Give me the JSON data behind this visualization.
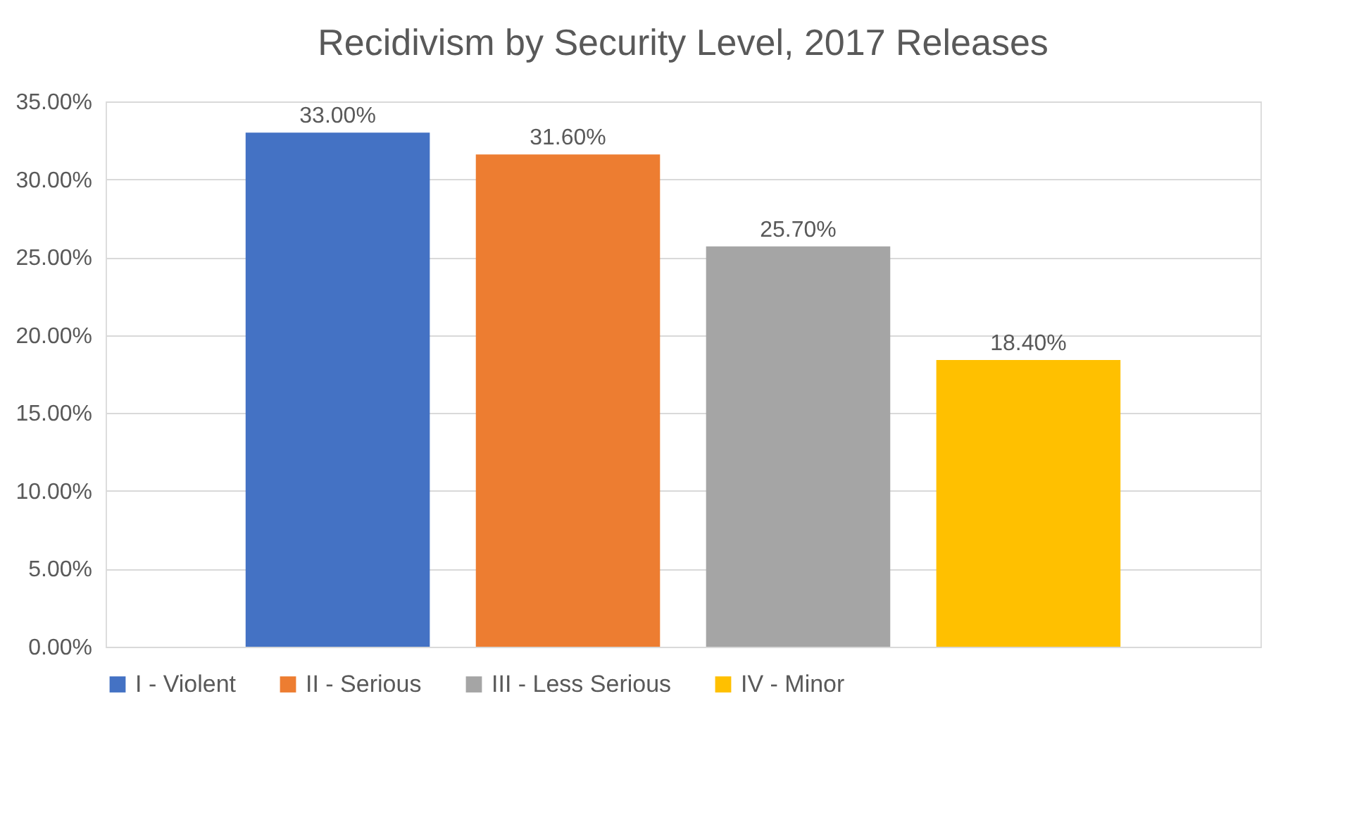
{
  "chart_data": {
    "type": "bar",
    "title": "Recidivism by Security Level, 2017 Releases",
    "categories": [
      null
    ],
    "series": [
      {
        "name": "I - Violent",
        "color": "#4472c4",
        "values": [
          33.0
        ],
        "value_labels": [
          "33.00%"
        ]
      },
      {
        "name": "II - Serious",
        "color": "#ed7d31",
        "values": [
          31.6
        ],
        "value_labels": [
          "31.60%"
        ]
      },
      {
        "name": "III - Less Serious",
        "color": "#a5a5a5",
        "values": [
          25.7
        ],
        "value_labels": [
          "25.70%"
        ]
      },
      {
        "name": "IV - Minor",
        "color": "#ffc000",
        "values": [
          18.4
        ],
        "value_labels": [
          "18.40%"
        ]
      }
    ],
    "ylim": [
      0,
      35
    ],
    "yticks": [
      {
        "value": 0,
        "label": "0.00%"
      },
      {
        "value": 5,
        "label": "5.00%"
      },
      {
        "value": 10,
        "label": "10.00%"
      },
      {
        "value": 15,
        "label": "15.00%"
      },
      {
        "value": 20,
        "label": "20.00%"
      },
      {
        "value": 25,
        "label": "25.00%"
      },
      {
        "value": 30,
        "label": "30.00%"
      },
      {
        "value": 35,
        "label": "35.00%"
      }
    ],
    "grid": "y",
    "legend": "bottom"
  }
}
